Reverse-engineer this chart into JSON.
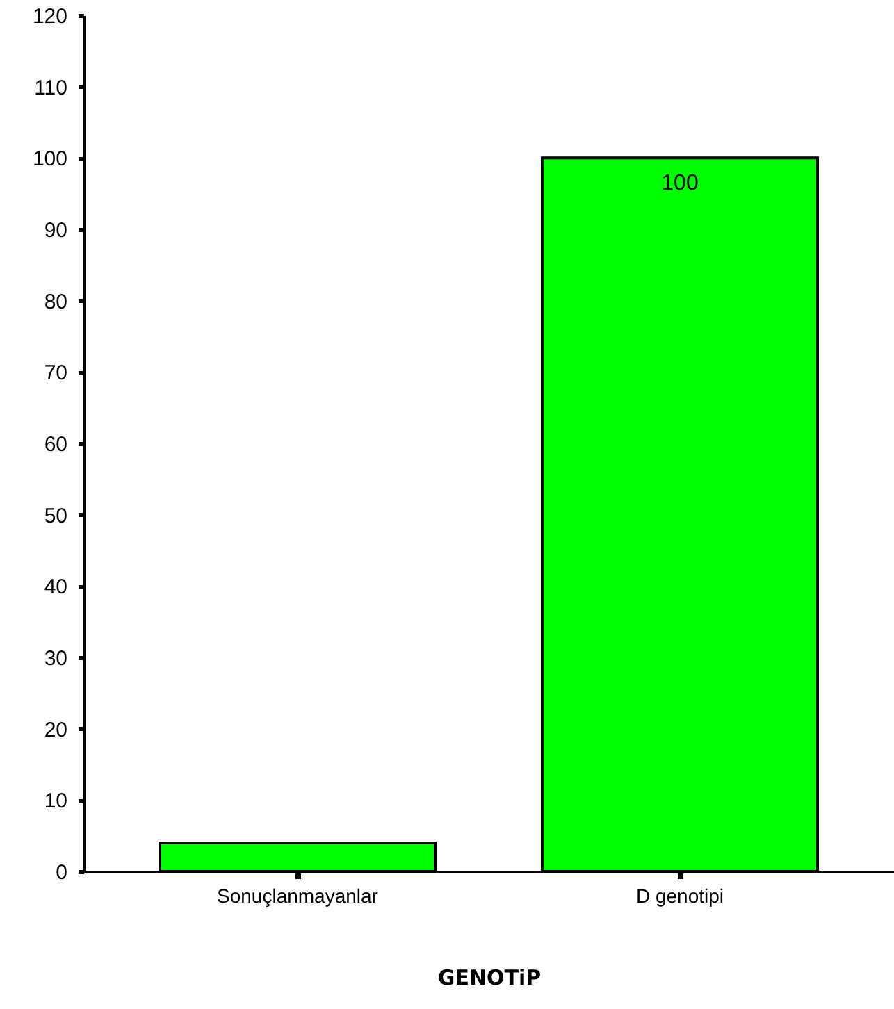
{
  "chart_data": {
    "type": "bar",
    "xlabel": "GENOTiP",
    "categories": [
      "Sonuçlanmayanlar",
      "D genotipi"
    ],
    "values": [
      4,
      100
    ],
    "color": "#00ff00",
    "value_labels": [
      null,
      "100"
    ],
    "ylim": [
      0,
      120
    ],
    "yticks": [
      0,
      10,
      20,
      30,
      40,
      50,
      60,
      70,
      80,
      90,
      100,
      110,
      120
    ],
    "grid": false
  }
}
